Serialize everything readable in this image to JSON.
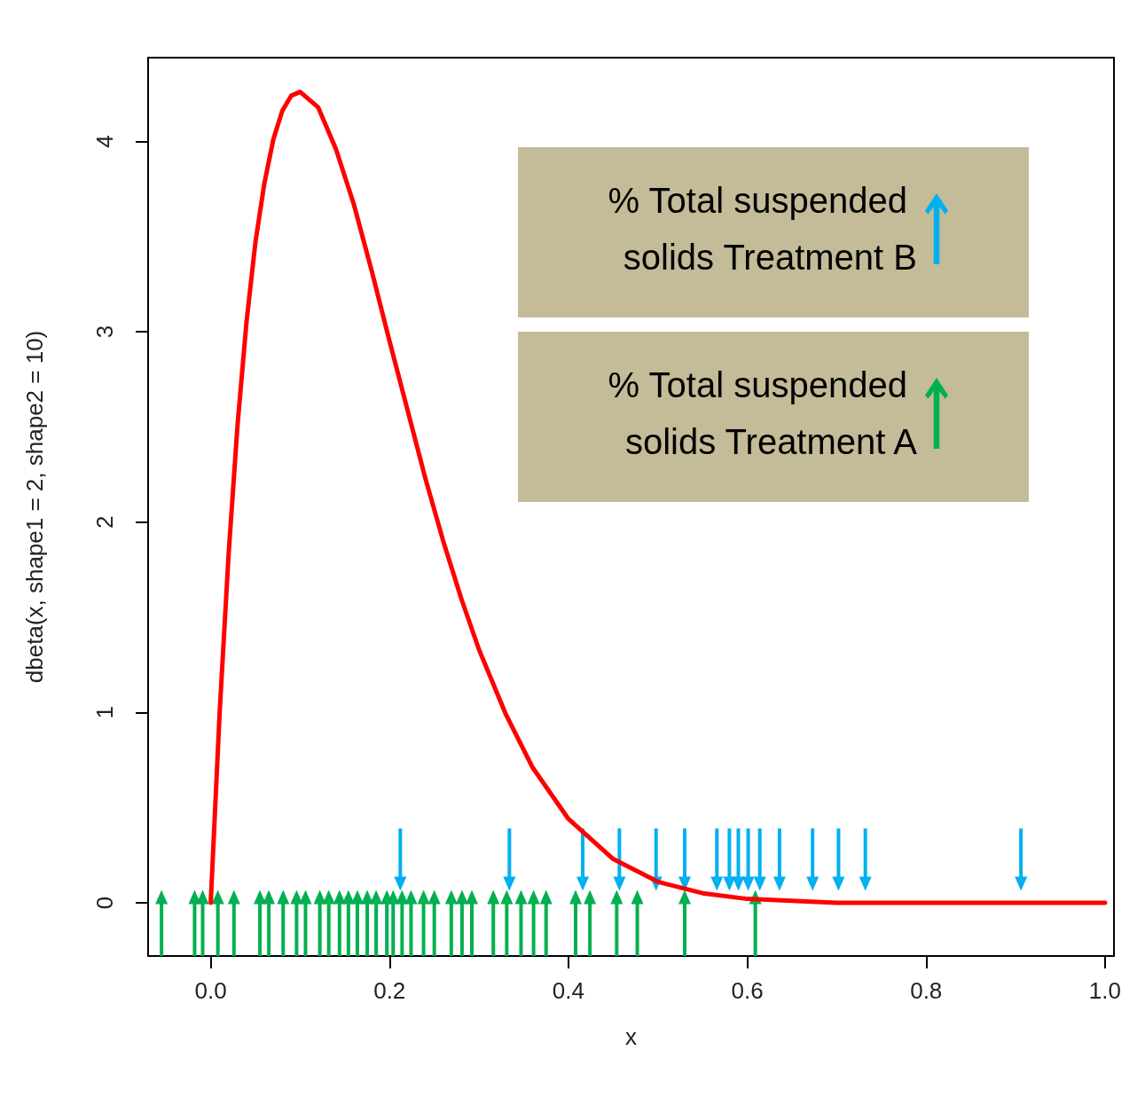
{
  "chart_data": {
    "type": "line",
    "xlabel": "x",
    "ylabel": "dbeta(x, shape1 = 2, shape2 = 10)",
    "xlim": [
      -0.07,
      1.01
    ],
    "ylim": [
      -0.28,
      4.44
    ],
    "xticks": [
      {
        "value": 0,
        "label": "0.0"
      },
      0.2,
      0.4,
      0.6,
      0.8,
      {
        "value": 1,
        "label": "1.0"
      }
    ],
    "yticks": [
      0,
      1,
      2,
      3,
      4
    ],
    "grid": false,
    "legend": "top right",
    "series": [
      {
        "color": "#ff0000",
        "line_style": "solid",
        "marker": "none",
        "x": [
          0,
          0.01,
          0.02,
          0.03,
          0.04,
          0.05,
          0.06,
          0.07,
          0.08,
          0.09,
          0.1,
          0.12,
          0.14,
          0.16,
          0.18,
          0.2,
          0.22,
          0.24,
          0.26,
          0.28,
          0.3,
          0.33,
          0.36,
          0.4,
          0.45,
          0.5,
          0.55,
          0.6,
          0.7,
          0.8,
          0.9,
          1.0
        ],
        "values": [
          0,
          1.0,
          1.83,
          2.51,
          3.05,
          3.47,
          3.78,
          4.01,
          4.16,
          4.24,
          4.26,
          4.18,
          3.96,
          3.67,
          3.32,
          2.95,
          2.59,
          2.23,
          1.9,
          1.6,
          1.33,
          0.99,
          0.71,
          0.44,
          0.23,
          0.11,
          0.05,
          0.02,
          0,
          0,
          0,
          0
        ]
      },
      {
        "type": "scatter",
        "marker": "triangle",
        "name": "% Total suspended solids Treatment B",
        "color": "#00b0f0",
        "x": [
          0.212,
          0.334,
          0.416,
          0.457,
          0.498,
          0.53,
          0.566,
          0.58,
          0.59,
          0.601,
          0.614,
          0.636,
          0.673,
          0.702,
          0.732,
          0.906
        ],
        "values": [
          0.1,
          0.1,
          0.1,
          0.1,
          0.1,
          0.1,
          0.1,
          0.1,
          0.1,
          0.1,
          0.1,
          0.1,
          0.1,
          0.1,
          0.1,
          0.1
        ],
        "errors": [
          [
            0.1,
            0.39
          ],
          [
            0.1,
            0.39
          ],
          [
            0.1,
            0.39
          ],
          [
            0.1,
            0.39
          ],
          [
            0.1,
            0.39
          ],
          [
            0.1,
            0.39
          ],
          [
            0.1,
            0.39
          ],
          [
            0.1,
            0.39
          ],
          [
            0.1,
            0.39
          ],
          [
            0.1,
            0.39
          ],
          [
            0.1,
            0.39
          ],
          [
            0.1,
            0.39
          ],
          [
            0.1,
            0.39
          ],
          [
            0.1,
            0.39
          ],
          [
            0.1,
            0.39
          ],
          [
            0.1,
            0.39
          ]
        ]
      },
      {
        "type": "scatter",
        "marker": "triangle",
        "name": "% Total suspended solids Treatment A",
        "color": "#00b050",
        "x": [
          -0.055,
          -0.018,
          -0.009,
          0.008,
          0.026,
          0.055,
          0.065,
          0.081,
          0.096,
          0.106,
          0.122,
          0.132,
          0.144,
          0.154,
          0.164,
          0.175,
          0.185,
          0.197,
          0.204,
          0.214,
          0.224,
          0.238,
          0.25,
          0.269,
          0.281,
          0.292,
          0.316,
          0.331,
          0.347,
          0.361,
          0.375,
          0.408,
          0.424,
          0.454,
          0.477,
          0.53,
          0.609
        ],
        "values": [
          0.03,
          0.03,
          0.03,
          0.03,
          0.03,
          0.03,
          0.03,
          0.03,
          0.03,
          0.03,
          0.03,
          0.03,
          0.03,
          0.03,
          0.03,
          0.03,
          0.03,
          0.03,
          0.03,
          0.03,
          0.03,
          0.03,
          0.03,
          0.03,
          0.03,
          0.03,
          0.03,
          0.03,
          0.03,
          0.03,
          0.03,
          0.03,
          0.03,
          0.03,
          0.03,
          0.03,
          0.03
        ],
        "errors": [
          [
            -0.28,
            0.03
          ],
          [
            -0.28,
            0.03
          ],
          [
            -0.28,
            0.03
          ],
          [
            -0.28,
            0.03
          ],
          [
            -0.28,
            0.03
          ],
          [
            -0.28,
            0.03
          ],
          [
            -0.28,
            0.03
          ],
          [
            -0.28,
            0.03
          ],
          [
            -0.28,
            0.03
          ],
          [
            -0.28,
            0.03
          ],
          [
            -0.28,
            0.03
          ],
          [
            -0.28,
            0.03
          ],
          [
            -0.28,
            0.03
          ],
          [
            -0.28,
            0.03
          ],
          [
            -0.28,
            0.03
          ],
          [
            -0.28,
            0.03
          ],
          [
            -0.28,
            0.03
          ],
          [
            -0.28,
            0.03
          ],
          [
            -0.28,
            0.03
          ],
          [
            -0.28,
            0.03
          ],
          [
            -0.28,
            0.03
          ],
          [
            -0.28,
            0.03
          ],
          [
            -0.28,
            0.03
          ],
          [
            -0.28,
            0.03
          ],
          [
            -0.28,
            0.03
          ],
          [
            -0.28,
            0.03
          ],
          [
            -0.28,
            0.03
          ],
          [
            -0.28,
            0.03
          ],
          [
            -0.28,
            0.03
          ],
          [
            -0.28,
            0.03
          ],
          [
            -0.28,
            0.03
          ],
          [
            -0.28,
            0.03
          ],
          [
            -0.28,
            0.03
          ],
          [
            -0.28,
            0.03
          ],
          [
            -0.28,
            0.03
          ],
          [
            -0.28,
            0.03
          ],
          [
            -0.28,
            0.03
          ]
        ]
      }
    ]
  }
}
